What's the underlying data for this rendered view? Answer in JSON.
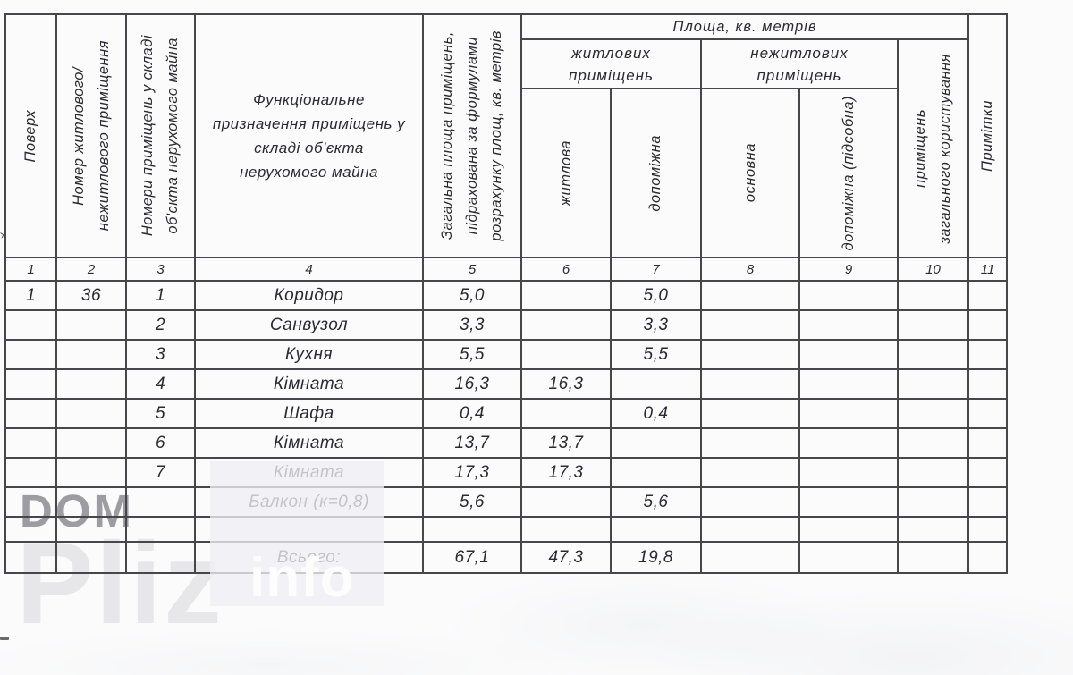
{
  "header": {
    "floor": "Поверх",
    "unit_number": [
      "Номер житлового/",
      "нежитлового приміщення"
    ],
    "room_numbers": [
      "Номери приміщень у складі",
      "об'єкта нерухомого майна"
    ],
    "function_purpose": [
      "Функціональне",
      "призначення приміщень у",
      "складі об'єкта",
      "нерухомого майна"
    ],
    "total_area": [
      "Загальна площа приміщень,",
      "підрахована за формулами",
      "розрахунку площ, кв. метрів"
    ],
    "area_group": "Площа, кв. метрів",
    "residential_group": [
      "житлових",
      "приміщень"
    ],
    "non_residential_group": [
      "нежитлових",
      "приміщень"
    ],
    "living": "житлова",
    "auxiliary": "допоміжна",
    "main": "основна",
    "auxiliary_utility": "допоміжна (підсобна)",
    "common_use": [
      "приміщень",
      "загального користування"
    ],
    "notes": "Примітки"
  },
  "numbering": [
    "1",
    "2",
    "3",
    "4",
    "5",
    "6",
    "7",
    "8",
    "9",
    "10",
    "11"
  ],
  "rows": [
    [
      "1",
      "36",
      "1",
      "Коридор",
      "5,0",
      "",
      "5,0",
      "",
      "",
      "",
      ""
    ],
    [
      "",
      "",
      "2",
      "Санвузол",
      "3,3",
      "",
      "3,3",
      "",
      "",
      "",
      ""
    ],
    [
      "",
      "",
      "3",
      "Кухня",
      "5,5",
      "",
      "5,5",
      "",
      "",
      "",
      ""
    ],
    [
      "",
      "",
      "4",
      "Кімната",
      "16,3",
      "16,3",
      "",
      "",
      "",
      "",
      ""
    ],
    [
      "",
      "",
      "5",
      "Шафа",
      "0,4",
      "",
      "0,4",
      "",
      "",
      "",
      ""
    ],
    [
      "",
      "",
      "6",
      "Кімната",
      "13,7",
      "13,7",
      "",
      "",
      "",
      "",
      ""
    ],
    [
      "",
      "",
      "7",
      "Кімната",
      "17,3",
      "17,3",
      "",
      "",
      "",
      "",
      ""
    ],
    [
      "",
      "",
      "",
      "Балкон (к=0,8)",
      "5,6",
      "",
      "5,6",
      "",
      "",
      "",
      ""
    ],
    [
      "",
      "",
      "",
      "",
      "",
      "",
      "",
      "",
      "",
      "",
      ""
    ],
    [
      "",
      "",
      "",
      "Всього:",
      "67,1",
      "47,3",
      "19,8",
      "",
      "",
      "",
      ""
    ]
  ],
  "watermark": {
    "dom": "DOM",
    "pliz": "Pliz",
    "info": "info"
  }
}
